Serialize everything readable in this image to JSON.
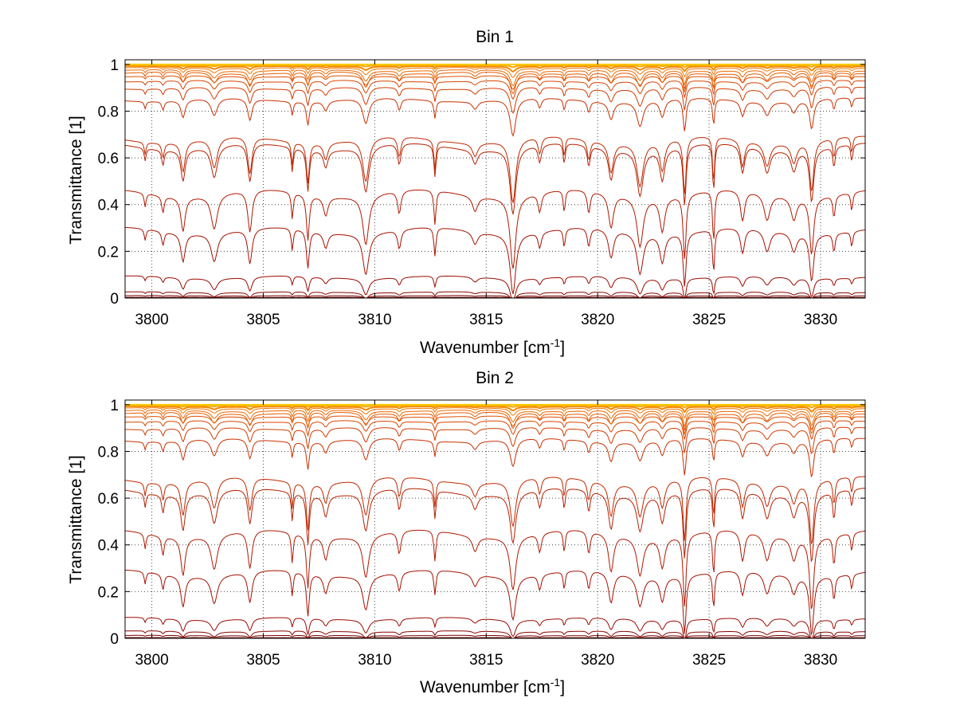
{
  "chart_data": [
    {
      "type": "line",
      "title": "Bin 1",
      "xlabel": "Wavenumber [cm",
      "xlabel_sup": "-1",
      "xlabel_end": "]",
      "ylabel": "Transmittance [1]",
      "xlim": [
        3798.8,
        3832
      ],
      "ylim": [
        0,
        1.02
      ],
      "xticks": [
        "3800",
        "3805",
        "3810",
        "3815",
        "3820",
        "3825",
        "3830"
      ],
      "yticks": [
        "0",
        "0.2",
        "0.4",
        "0.6",
        "0.8",
        "1"
      ],
      "grid": true,
      "series_baselines": [
        0.003,
        0.01,
        0.025,
        0.09,
        0.29,
        0.45,
        0.65,
        0.68,
        0.85,
        0.9,
        0.93,
        0.95,
        0.965,
        0.975,
        0.985,
        0.992,
        0.997,
        1.0
      ],
      "absorption_lines": [
        {
          "x": 3799.7,
          "depth": 0.18
        },
        {
          "x": 3800.5,
          "depth": 0.22
        },
        {
          "x": 3801.4,
          "depth": 0.45
        },
        {
          "x": 3802.8,
          "depth": 0.45
        },
        {
          "x": 3804.4,
          "depth": 0.55
        },
        {
          "x": 3806.3,
          "depth": 0.35
        },
        {
          "x": 3807.0,
          "depth": 0.6
        },
        {
          "x": 3807.8,
          "depth": 0.25
        },
        {
          "x": 3809.6,
          "depth": 0.65
        },
        {
          "x": 3811.1,
          "depth": 0.3
        },
        {
          "x": 3812.7,
          "depth": 0.45
        },
        {
          "x": 3814.5,
          "depth": 0.2
        },
        {
          "x": 3816.2,
          "depth": 0.95
        },
        {
          "x": 3817.4,
          "depth": 0.25
        },
        {
          "x": 3818.5,
          "depth": 0.3
        },
        {
          "x": 3819.6,
          "depth": 0.3
        },
        {
          "x": 3820.6,
          "depth": 0.45
        },
        {
          "x": 3821.9,
          "depth": 0.65
        },
        {
          "x": 3822.9,
          "depth": 0.45
        },
        {
          "x": 3823.9,
          "depth": 0.85
        },
        {
          "x": 3825.2,
          "depth": 0.7
        },
        {
          "x": 3826.5,
          "depth": 0.4
        },
        {
          "x": 3827.6,
          "depth": 0.35
        },
        {
          "x": 3828.8,
          "depth": 0.3
        },
        {
          "x": 3829.6,
          "depth": 0.75
        },
        {
          "x": 3830.6,
          "depth": 0.3
        },
        {
          "x": 3831.4,
          "depth": 0.25
        }
      ]
    },
    {
      "type": "line",
      "title": "Bin 2",
      "xlabel": "Wavenumber [cm",
      "xlabel_sup": "-1",
      "xlabel_end": "]",
      "ylabel": "Transmittance [1]",
      "xlim": [
        3798.8,
        3832
      ],
      "ylim": [
        0,
        1.02
      ],
      "xticks": [
        "3800",
        "3805",
        "3810",
        "3815",
        "3820",
        "3825",
        "3830"
      ],
      "yticks": [
        "0",
        "0.2",
        "0.4",
        "0.6",
        "0.8",
        "1"
      ],
      "grid": true,
      "series_baselines": [
        0.003,
        0.012,
        0.03,
        0.085,
        0.28,
        0.45,
        0.63,
        0.68,
        0.85,
        0.9,
        0.93,
        0.95,
        0.965,
        0.975,
        0.985,
        0.992,
        0.997,
        1.0
      ],
      "absorption_lines": [
        {
          "x": 3799.7,
          "depth": 0.2
        },
        {
          "x": 3800.5,
          "depth": 0.25
        },
        {
          "x": 3801.4,
          "depth": 0.5
        },
        {
          "x": 3802.8,
          "depth": 0.45
        },
        {
          "x": 3804.4,
          "depth": 0.5
        },
        {
          "x": 3806.3,
          "depth": 0.4
        },
        {
          "x": 3807.0,
          "depth": 0.7
        },
        {
          "x": 3807.8,
          "depth": 0.3
        },
        {
          "x": 3809.6,
          "depth": 0.55
        },
        {
          "x": 3811.1,
          "depth": 0.3
        },
        {
          "x": 3812.7,
          "depth": 0.4
        },
        {
          "x": 3814.5,
          "depth": 0.2
        },
        {
          "x": 3816.2,
          "depth": 0.7
        },
        {
          "x": 3817.4,
          "depth": 0.25
        },
        {
          "x": 3818.5,
          "depth": 0.3
        },
        {
          "x": 3819.6,
          "depth": 0.3
        },
        {
          "x": 3820.6,
          "depth": 0.5
        },
        {
          "x": 3821.9,
          "depth": 0.5
        },
        {
          "x": 3822.9,
          "depth": 0.4
        },
        {
          "x": 3823.9,
          "depth": 0.95
        },
        {
          "x": 3825.2,
          "depth": 0.6
        },
        {
          "x": 3826.5,
          "depth": 0.4
        },
        {
          "x": 3827.6,
          "depth": 0.35
        },
        {
          "x": 3828.8,
          "depth": 0.3
        },
        {
          "x": 3829.6,
          "depth": 0.95
        },
        {
          "x": 3830.6,
          "depth": 0.4
        },
        {
          "x": 3831.4,
          "depth": 0.25
        }
      ]
    }
  ]
}
